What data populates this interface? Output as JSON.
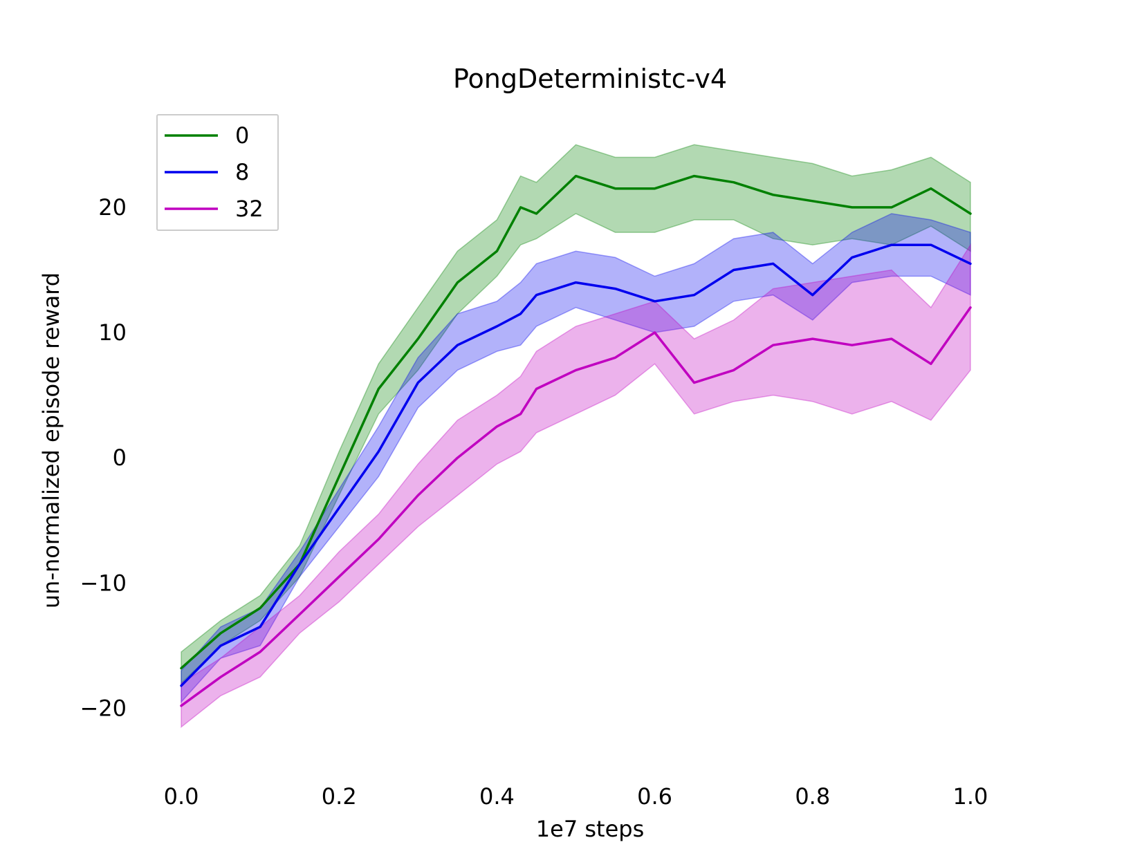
{
  "chart_data": {
    "type": "line",
    "title": "PongDeterministc-v4",
    "xlabel": "1e7 steps",
    "ylabel": "un-normalized episode reward",
    "xlim": [
      -0.05,
      1.05
    ],
    "ylim": [
      -25,
      28
    ],
    "xticks": [
      0.0,
      0.2,
      0.4,
      0.6,
      0.8,
      1.0
    ],
    "xtick_labels": [
      "0.0",
      "0.2",
      "0.4",
      "0.6",
      "0.8",
      "1.0"
    ],
    "yticks": [
      -20,
      -10,
      0,
      10,
      20
    ],
    "ytick_labels": [
      "−20",
      "−10",
      "0",
      "10",
      "20"
    ],
    "grid": false,
    "legend_position": "top-left",
    "band": "shaded region around each mean line",
    "series": [
      {
        "name": "0",
        "color": "#008000",
        "x": [
          0.0,
          0.05,
          0.1,
          0.15,
          0.2,
          0.25,
          0.3,
          0.35,
          0.4,
          0.43,
          0.45,
          0.5,
          0.55,
          0.6,
          0.65,
          0.7,
          0.75,
          0.8,
          0.85,
          0.9,
          0.95,
          1.0
        ],
        "mean": [
          -16.8,
          -14.0,
          -12.0,
          -8.5,
          -1.5,
          5.5,
          9.5,
          14.0,
          16.5,
          20.0,
          19.5,
          22.5,
          21.5,
          21.5,
          22.5,
          22.0,
          21.0,
          20.5,
          20.0,
          20.0,
          21.5,
          19.5
        ],
        "lower": [
          -18.0,
          -15.0,
          -13.0,
          -9.5,
          -3.0,
          3.5,
          7.0,
          11.5,
          14.5,
          17.0,
          17.5,
          19.5,
          18.0,
          18.0,
          19.0,
          19.0,
          17.5,
          17.0,
          17.5,
          17.0,
          18.5,
          16.5
        ],
        "upper": [
          -15.5,
          -13.0,
          -11.0,
          -7.0,
          0.5,
          7.5,
          12.0,
          16.5,
          19.0,
          22.5,
          22.0,
          25.0,
          24.0,
          24.0,
          25.0,
          24.5,
          24.0,
          23.5,
          22.5,
          23.0,
          24.0,
          22.0
        ]
      },
      {
        "name": "8",
        "color": "#0000ee",
        "x": [
          0.0,
          0.05,
          0.1,
          0.15,
          0.2,
          0.25,
          0.3,
          0.35,
          0.4,
          0.43,
          0.45,
          0.5,
          0.55,
          0.6,
          0.65,
          0.7,
          0.75,
          0.8,
          0.85,
          0.9,
          0.95,
          1.0
        ],
        "mean": [
          -18.2,
          -15.0,
          -13.5,
          -8.5,
          -4.0,
          0.5,
          6.0,
          9.0,
          10.5,
          11.5,
          13.0,
          14.0,
          13.5,
          12.5,
          13.0,
          15.0,
          15.5,
          13.0,
          16.0,
          17.0,
          17.0,
          15.5
        ],
        "lower": [
          -19.5,
          -16.0,
          -15.0,
          -9.5,
          -5.5,
          -1.5,
          4.0,
          7.0,
          8.5,
          9.0,
          10.5,
          12.0,
          11.0,
          10.0,
          10.5,
          12.5,
          13.0,
          11.0,
          14.0,
          14.5,
          14.5,
          13.0
        ],
        "upper": [
          -17.0,
          -13.5,
          -12.0,
          -7.5,
          -2.5,
          2.5,
          8.0,
          11.5,
          12.5,
          14.0,
          15.5,
          16.5,
          16.0,
          14.5,
          15.5,
          17.5,
          18.0,
          15.5,
          18.0,
          19.5,
          19.0,
          18.0
        ]
      },
      {
        "name": "32",
        "color": "#c000c0",
        "x": [
          0.0,
          0.05,
          0.1,
          0.15,
          0.2,
          0.25,
          0.3,
          0.35,
          0.4,
          0.43,
          0.45,
          0.5,
          0.55,
          0.6,
          0.65,
          0.7,
          0.75,
          0.8,
          0.85,
          0.9,
          0.95,
          1.0
        ],
        "mean": [
          -19.8,
          -17.5,
          -15.5,
          -12.5,
          -9.5,
          -6.5,
          -3.0,
          0.0,
          2.5,
          3.5,
          5.5,
          7.0,
          8.0,
          10.0,
          6.0,
          7.0,
          9.0,
          9.5,
          9.0,
          9.5,
          7.5,
          12.0
        ],
        "lower": [
          -21.5,
          -19.0,
          -17.5,
          -14.0,
          -11.5,
          -8.5,
          -5.5,
          -3.0,
          -0.5,
          0.5,
          2.0,
          3.5,
          5.0,
          7.5,
          3.5,
          4.5,
          5.0,
          4.5,
          3.5,
          4.5,
          3.0,
          7.0
        ],
        "upper": [
          -18.0,
          -16.0,
          -13.5,
          -11.0,
          -7.5,
          -4.5,
          -0.5,
          3.0,
          5.0,
          6.5,
          8.5,
          10.5,
          11.5,
          12.5,
          9.5,
          11.0,
          13.5,
          14.0,
          14.5,
          15.0,
          12.0,
          17.0
        ]
      }
    ]
  }
}
